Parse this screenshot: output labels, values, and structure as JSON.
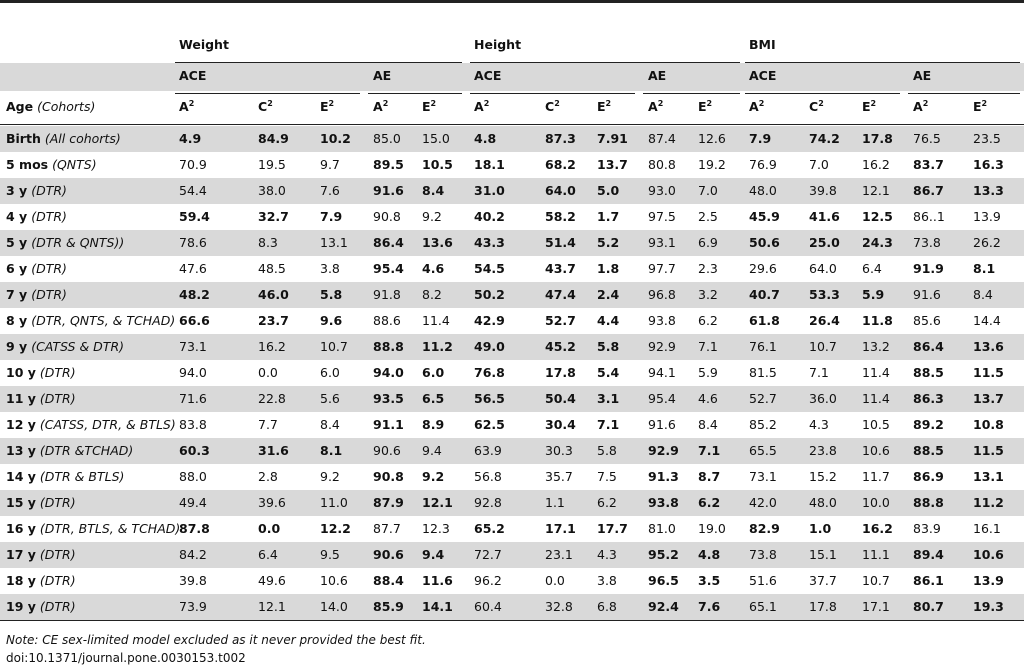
{
  "table": {
    "groups": [
      {
        "label": "Weight"
      },
      {
        "label": "Height"
      },
      {
        "label": "BMI"
      }
    ],
    "models": [
      {
        "label": "ACE"
      },
      {
        "label": "AE"
      },
      {
        "label": "ACE"
      },
      {
        "label": "AE"
      },
      {
        "label": "ACE"
      },
      {
        "label": "AE"
      }
    ],
    "params": [
      {
        "letter": "A",
        "sup": "2"
      },
      {
        "letter": "C",
        "sup": "2"
      },
      {
        "letter": "E",
        "sup": "2"
      },
      {
        "letter": "A",
        "sup": "2"
      },
      {
        "letter": "E",
        "sup": "2"
      },
      {
        "letter": "A",
        "sup": "2"
      },
      {
        "letter": "C",
        "sup": "2"
      },
      {
        "letter": "E",
        "sup": "2"
      },
      {
        "letter": "A",
        "sup": "2"
      },
      {
        "letter": "E",
        "sup": "2"
      },
      {
        "letter": "A",
        "sup": "2"
      },
      {
        "letter": "C",
        "sup": "2"
      },
      {
        "letter": "E",
        "sup": "2"
      },
      {
        "letter": "A",
        "sup": "2"
      },
      {
        "letter": "E",
        "sup": "2"
      }
    ],
    "age_header": {
      "label": "Age",
      "note": "(Cohorts)"
    },
    "rows": [
      {
        "age": "Birth",
        "cohort": "(All cohorts)",
        "cells": [
          "4.9",
          "84.9",
          "10.2",
          "85.0",
          "15.0",
          "4.8",
          "87.3",
          "7.91",
          "87.4",
          "12.6",
          "7.9",
          "74.2",
          "17.8",
          "76.5",
          "23.5"
        ],
        "bold": [
          true,
          true,
          true,
          false,
          false,
          true,
          true,
          true,
          false,
          false,
          true,
          true,
          true,
          false,
          false
        ]
      },
      {
        "age": "5 mos",
        "cohort": "(QNTS)",
        "cells": [
          "70.9",
          "19.5",
          "9.7",
          "89.5",
          "10.5",
          "18.1",
          "68.2",
          "13.7",
          "80.8",
          "19.2",
          "76.9",
          "7.0",
          "16.2",
          "83.7",
          "16.3"
        ],
        "bold": [
          false,
          false,
          false,
          true,
          true,
          true,
          true,
          true,
          false,
          false,
          false,
          false,
          false,
          true,
          true
        ]
      },
      {
        "age": "3 y",
        "cohort": "(DTR)",
        "cells": [
          "54.4",
          "38.0",
          "7.6",
          "91.6",
          "8.4",
          "31.0",
          "64.0",
          "5.0",
          "93.0",
          "7.0",
          "48.0",
          "39.8",
          "12.1",
          "86.7",
          "13.3"
        ],
        "bold": [
          false,
          false,
          false,
          true,
          true,
          true,
          true,
          true,
          false,
          false,
          false,
          false,
          false,
          true,
          true
        ]
      },
      {
        "age": "4 y",
        "cohort": "(DTR)",
        "cells": [
          "59.4",
          "32.7",
          "7.9",
          "90.8",
          "9.2",
          "40.2",
          "58.2",
          "1.7",
          "97.5",
          "2.5",
          "45.9",
          "41.6",
          "12.5",
          "86..1",
          "13.9"
        ],
        "bold": [
          true,
          true,
          true,
          false,
          false,
          true,
          true,
          true,
          false,
          false,
          true,
          true,
          true,
          false,
          false
        ]
      },
      {
        "age": "5 y",
        "cohort": "(DTR & QNTS))",
        "cells": [
          "78.6",
          "8.3",
          "13.1",
          "86.4",
          "13.6",
          "43.3",
          "51.4",
          "5.2",
          "93.1",
          "6.9",
          "50.6",
          "25.0",
          "24.3",
          "73.8",
          "26.2"
        ],
        "bold": [
          false,
          false,
          false,
          true,
          true,
          true,
          true,
          true,
          false,
          false,
          true,
          true,
          true,
          false,
          false
        ]
      },
      {
        "age": "6 y",
        "cohort": "(DTR)",
        "cells": [
          "47.6",
          "48.5",
          "3.8",
          "95.4",
          "4.6",
          "54.5",
          "43.7",
          "1.8",
          "97.7",
          "2.3",
          "29.6",
          "64.0",
          "6.4",
          "91.9",
          "8.1"
        ],
        "bold": [
          false,
          false,
          false,
          true,
          true,
          true,
          true,
          true,
          false,
          false,
          false,
          false,
          false,
          true,
          true
        ]
      },
      {
        "age": "7 y",
        "cohort": "(DTR)",
        "cells": [
          "48.2",
          "46.0",
          "5.8",
          "91.8",
          "8.2",
          "50.2",
          "47.4",
          "2.4",
          "96.8",
          "3.2",
          "40.7",
          "53.3",
          "5.9",
          "91.6",
          "8.4"
        ],
        "bold": [
          true,
          true,
          true,
          false,
          false,
          true,
          true,
          true,
          false,
          false,
          true,
          true,
          true,
          false,
          false
        ]
      },
      {
        "age": "8 y",
        "cohort": "(DTR, QNTS, & TCHAD)",
        "cells": [
          "66.6",
          "23.7",
          "9.6",
          "88.6",
          "11.4",
          "42.9",
          "52.7",
          "4.4",
          "93.8",
          "6.2",
          "61.8",
          "26.4",
          "11.8",
          "85.6",
          "14.4"
        ],
        "bold": [
          true,
          true,
          true,
          false,
          false,
          true,
          true,
          true,
          false,
          false,
          true,
          true,
          true,
          false,
          false
        ]
      },
      {
        "age": "9 y",
        "cohort": "(CATSS & DTR)",
        "cells": [
          "73.1",
          "16.2",
          "10.7",
          "88.8",
          "11.2",
          "49.0",
          "45.2",
          "5.8",
          "92.9",
          "7.1",
          "76.1",
          "10.7",
          "13.2",
          "86.4",
          "13.6"
        ],
        "bold": [
          false,
          false,
          false,
          true,
          true,
          true,
          true,
          true,
          false,
          false,
          false,
          false,
          false,
          true,
          true
        ]
      },
      {
        "age": "10 y",
        "cohort": "(DTR)",
        "cells": [
          "94.0",
          "0.0",
          "6.0",
          "94.0",
          "6.0",
          "76.8",
          "17.8",
          "5.4",
          "94.1",
          "5.9",
          "81.5",
          "7.1",
          "11.4",
          "88.5",
          "11.5"
        ],
        "bold": [
          false,
          false,
          false,
          true,
          true,
          true,
          true,
          true,
          false,
          false,
          false,
          false,
          false,
          true,
          true
        ]
      },
      {
        "age": "11 y",
        "cohort": "(DTR)",
        "cells": [
          "71.6",
          "22.8",
          "5.6",
          "93.5",
          "6.5",
          "56.5",
          "50.4",
          "3.1",
          "95.4",
          "4.6",
          "52.7",
          "36.0",
          "11.4",
          "86.3",
          "13.7"
        ],
        "bold": [
          false,
          false,
          false,
          true,
          true,
          true,
          true,
          true,
          false,
          false,
          false,
          false,
          false,
          true,
          true
        ]
      },
      {
        "age": "12 y",
        "cohort": "(CATSS, DTR, & BTLS)",
        "cells": [
          "83.8",
          "7.7",
          "8.4",
          "91.1",
          "8.9",
          "62.5",
          "30.4",
          "7.1",
          "91.6",
          "8.4",
          "85.2",
          "4.3",
          "10.5",
          "89.2",
          "10.8"
        ],
        "bold": [
          false,
          false,
          false,
          true,
          true,
          true,
          true,
          true,
          false,
          false,
          false,
          false,
          false,
          true,
          true
        ]
      },
      {
        "age": "13 y",
        "cohort": "(DTR &TCHAD)",
        "cells": [
          "60.3",
          "31.6",
          "8.1",
          "90.6",
          "9.4",
          "63.9",
          "30.3",
          "5.8",
          "92.9",
          "7.1",
          "65.5",
          "23.8",
          "10.6",
          "88.5",
          "11.5"
        ],
        "bold": [
          true,
          true,
          true,
          false,
          false,
          false,
          false,
          false,
          true,
          true,
          false,
          false,
          false,
          true,
          true
        ]
      },
      {
        "age": "14 y",
        "cohort": "(DTR & BTLS)",
        "cells": [
          "88.0",
          "2.8",
          "9.2",
          "90.8",
          "9.2",
          "56.8",
          "35.7",
          "7.5",
          "91.3",
          "8.7",
          "73.1",
          "15.2",
          "11.7",
          "86.9",
          "13.1"
        ],
        "bold": [
          false,
          false,
          false,
          true,
          true,
          false,
          false,
          false,
          true,
          true,
          false,
          false,
          false,
          true,
          true
        ]
      },
      {
        "age": "15 y",
        "cohort": "(DTR)",
        "cells": [
          "49.4",
          "39.6",
          "11.0",
          "87.9",
          "12.1",
          "92.8",
          "1.1",
          "6.2",
          "93.8",
          "6.2",
          "42.0",
          "48.0",
          "10.0",
          "88.8",
          "11.2"
        ],
        "bold": [
          false,
          false,
          false,
          true,
          true,
          false,
          false,
          false,
          true,
          true,
          false,
          false,
          false,
          true,
          true
        ]
      },
      {
        "age": "16 y",
        "cohort": "(DTR, BTLS, & TCHAD)",
        "cells": [
          "87.8",
          "0.0",
          "12.2",
          "87.7",
          "12.3",
          "65.2",
          "17.1",
          "17.7",
          "81.0",
          "19.0",
          "82.9",
          "1.0",
          "16.2",
          "83.9",
          "16.1"
        ],
        "bold": [
          true,
          true,
          true,
          false,
          false,
          true,
          true,
          true,
          false,
          false,
          true,
          true,
          true,
          false,
          false
        ]
      },
      {
        "age": "17 y",
        "cohort": "(DTR)",
        "cells": [
          "84.2",
          "6.4",
          "9.5",
          "90.6",
          "9.4",
          "72.7",
          "23.1",
          "4.3",
          "95.2",
          "4.8",
          "73.8",
          "15.1",
          "11.1",
          "89.4",
          "10.6"
        ],
        "bold": [
          false,
          false,
          false,
          true,
          true,
          false,
          false,
          false,
          true,
          true,
          false,
          false,
          false,
          true,
          true
        ]
      },
      {
        "age": "18 y",
        "cohort": "(DTR)",
        "cells": [
          "39.8",
          "49.6",
          "10.6",
          "88.4",
          "11.6",
          "96.2",
          "0.0",
          "3.8",
          "96.5",
          "3.5",
          "51.6",
          "37.7",
          "10.7",
          "86.1",
          "13.9"
        ],
        "bold": [
          false,
          false,
          false,
          true,
          true,
          false,
          false,
          false,
          true,
          true,
          false,
          false,
          false,
          true,
          true
        ]
      },
      {
        "age": "19 y",
        "cohort": "(DTR)",
        "cells": [
          "73.9",
          "12.1",
          "14.0",
          "85.9",
          "14.1",
          "60.4",
          "32.8",
          "6.8",
          "92.4",
          "7.6",
          "65.1",
          "17.8",
          "17.1",
          "80.7",
          "19.3"
        ],
        "bold": [
          false,
          false,
          false,
          true,
          true,
          false,
          false,
          false,
          true,
          true,
          false,
          false,
          false,
          true,
          true
        ]
      }
    ]
  },
  "footer": {
    "note": "Note: CE sex-limited model excluded as it never provided the best fit.",
    "doi": "doi:10.1371/journal.pone.0030153.t002"
  }
}
